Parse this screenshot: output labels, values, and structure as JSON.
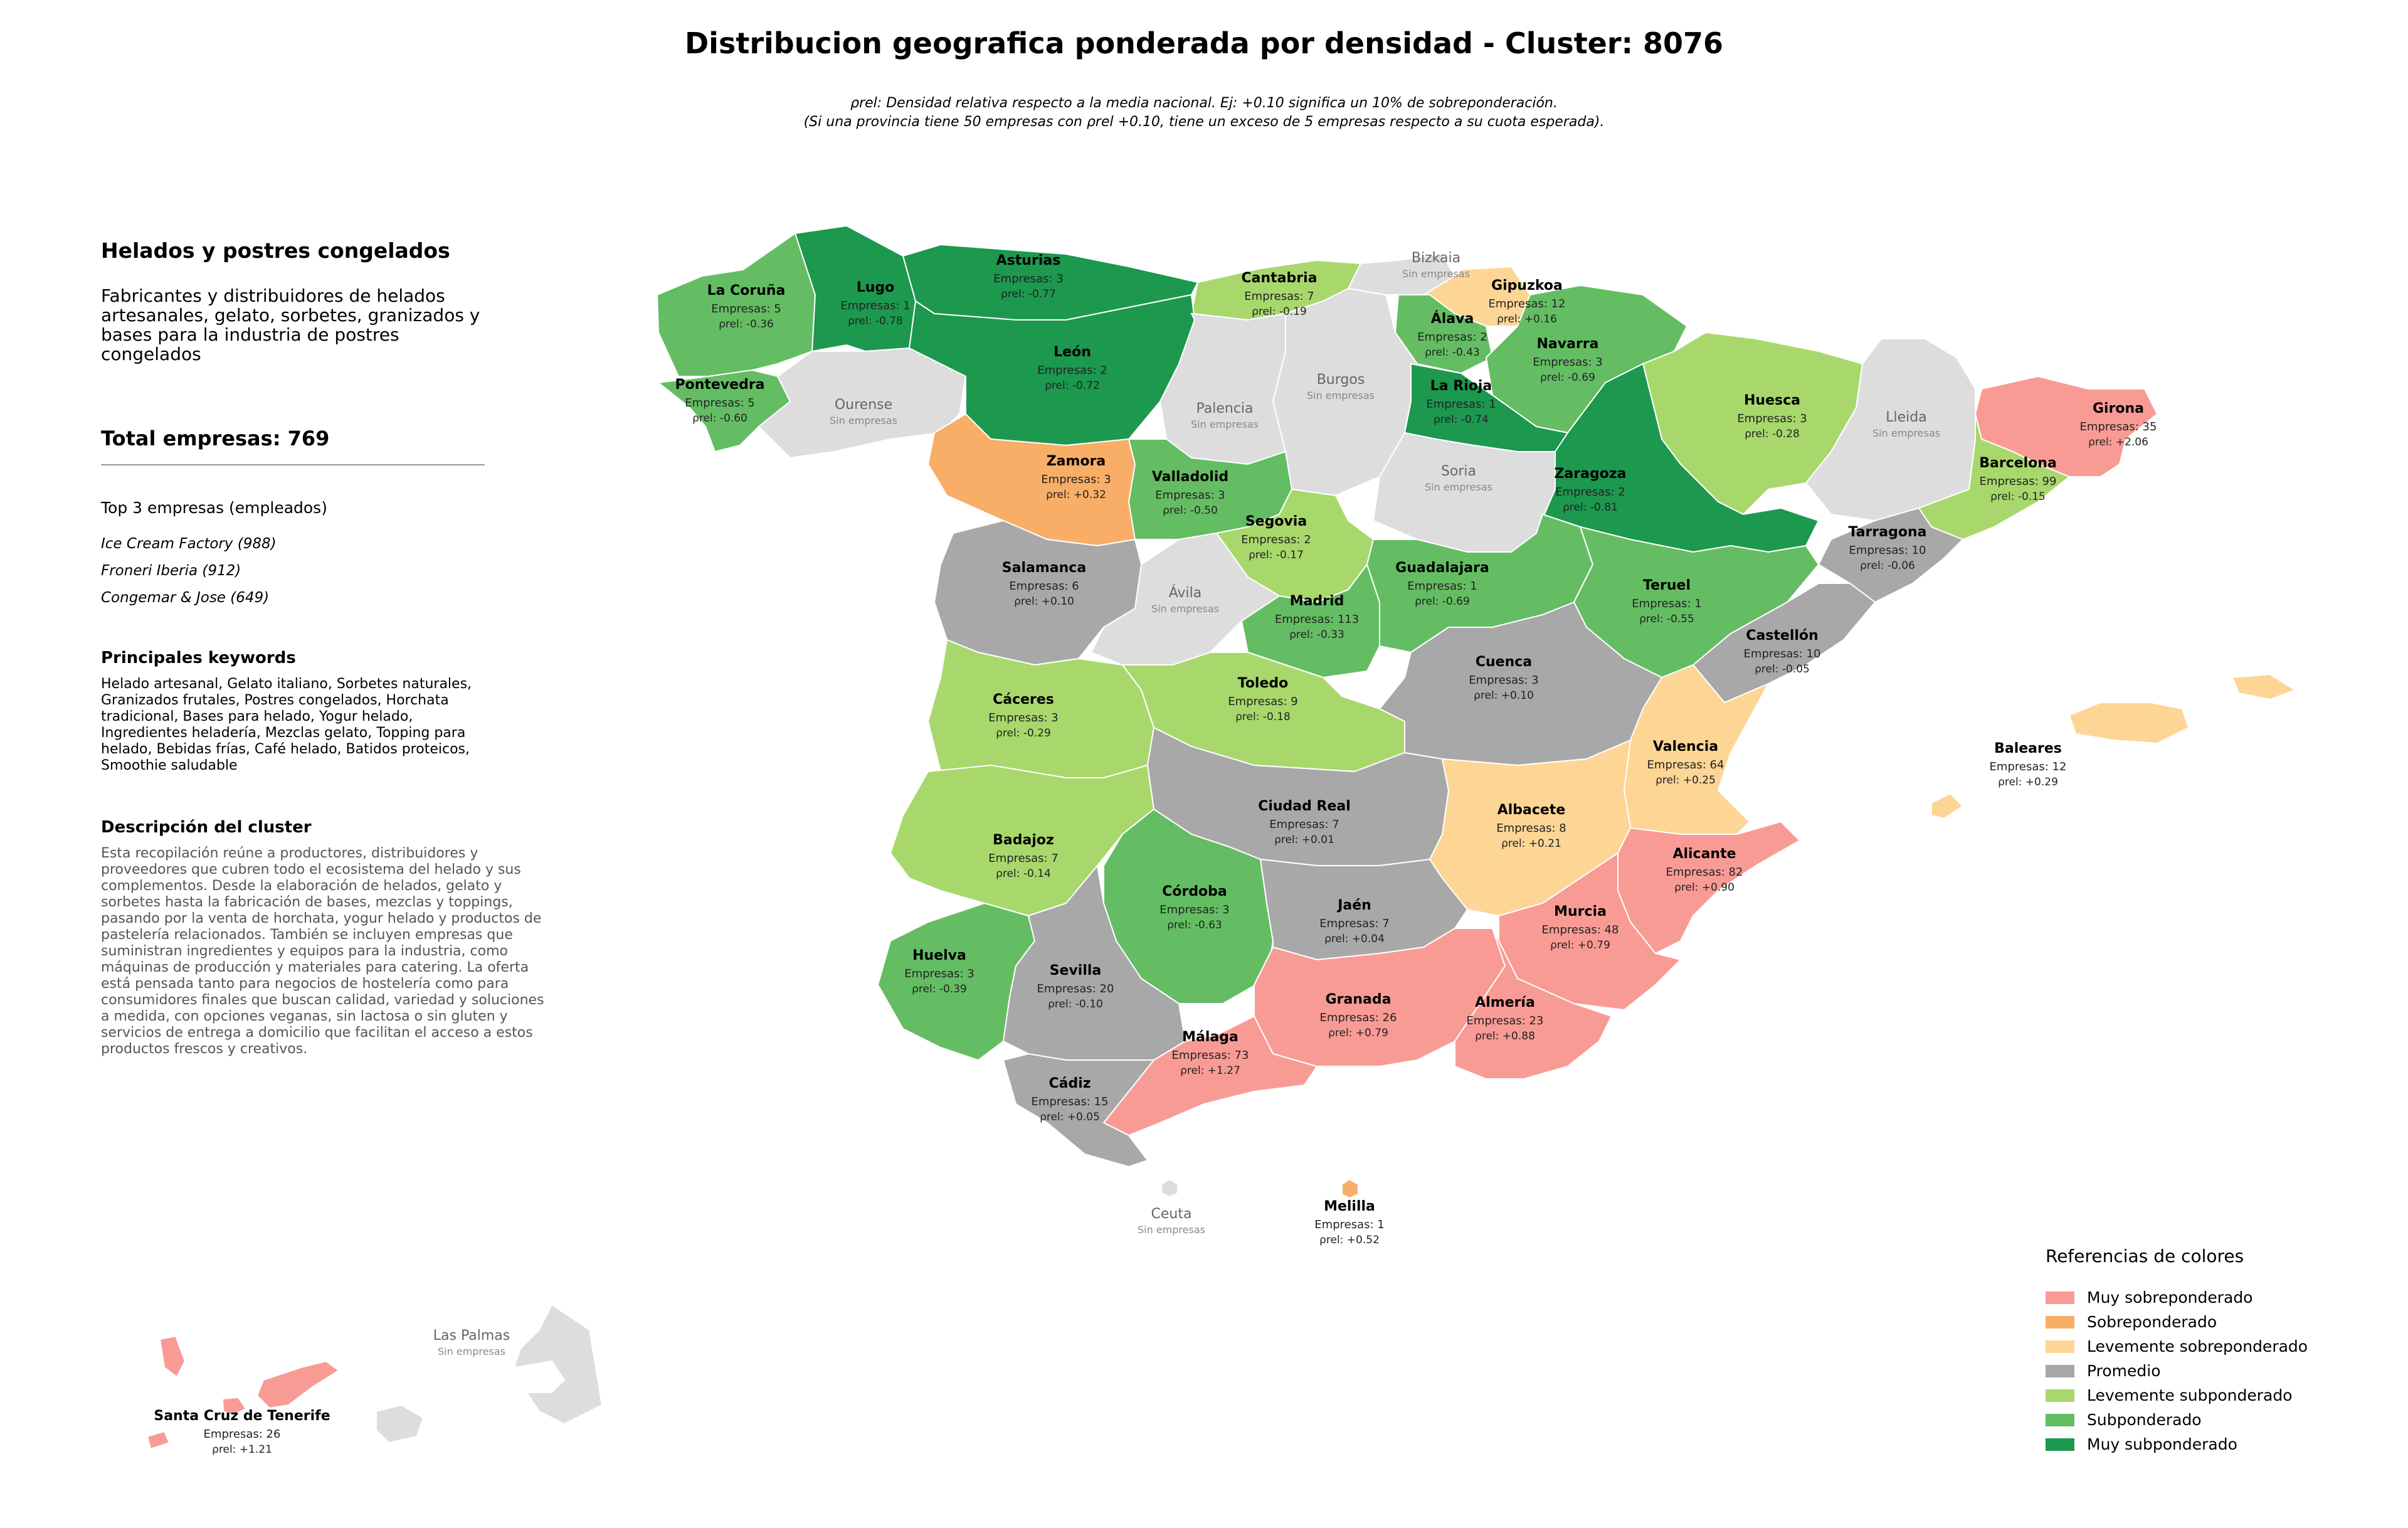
{
  "title": "Distribucion geografica ponderada por densidad - Cluster: 8076",
  "subtitle_line1": "ρrel: Densidad relativa respecto a la media nacional. Ej: +0.10 significa un 10% de sobreponderación.",
  "subtitle_line2": "(Si una provincia tiene 50 empresas con ρrel +0.10, tiene un exceso de 5 empresas respecto a su cuota esperada).",
  "sidebar": {
    "sector_title": "Helados y postres congelados",
    "sector_desc": "Fabricantes y distribuidores de helados artesanales, gelato, sorbetes, granizados y bases para la industria de postres congelados",
    "total": "Total empresas: 769",
    "top3_title": "Top 3 empresas (empleados)",
    "top3": [
      "Ice Cream Factory (988)",
      "Froneri Iberia (912)",
      "Congemar & Jose (649)"
    ],
    "keywords_title": "Principales keywords",
    "keywords": "Helado artesanal, Gelato italiano, Sorbetes naturales, Granizados frutales, Postres congelados, Horchata tradicional, Bases para helado, Yogur helado, Ingredientes heladería, Mezclas gelato, Topping para helado, Bebidas frías, Café helado, Batidos proteicos, Smoothie saludable",
    "cluster_desc_title": "Descripción del cluster",
    "cluster_desc": "Esta recopilación reúne a productores, distribuidores y proveedores que cubren todo el ecosistema del helado y sus complementos. Desde la elaboración de helados, gelato y sorbetes hasta la fabricación de bases, mezclas y toppings, pasando por la venta de horchata, yogur helado y productos de pastelería relacionados. También se incluyen empresas que suministran ingredientes y equipos para la industria, como máquinas de producción y materiales para catering. La oferta está pensada tanto para negocios de hostelería como para consumidores finales que buscan calidad, variedad y soluciones a medida, con opciones veganas, sin lactosa o sin gluten y servicios de entrega a domicilio que facilitan el acceso a estos productos frescos y creativos."
  },
  "colors": {
    "muy_sobre": "#f99b95",
    "sobre": "#f8ae66",
    "lev_sobre": "#fdd595",
    "promedio": "#a8a8a8",
    "lev_sub": "#a8d86c",
    "sub": "#64bd63",
    "muy_sub": "#1c984f",
    "sin_datos": "#dddddd"
  },
  "labels": {
    "empresas": "Empresas:",
    "rho": "ρrel:",
    "sin_empresas": "Sin empresas"
  },
  "legend": {
    "title": "Referencias de colores",
    "items": [
      {
        "label": "Muy sobreponderado",
        "color": "#f99b95"
      },
      {
        "label": "Sobreponderado",
        "color": "#f8ae66"
      },
      {
        "label": "Levemente sobreponderado",
        "color": "#fdd595"
      },
      {
        "label": "Promedio",
        "color": "#a8a8a8"
      },
      {
        "label": "Levemente subponderado",
        "color": "#a8d86c"
      },
      {
        "label": "Subponderado",
        "color": "#64bd63"
      },
      {
        "label": "Muy subponderado",
        "color": "#1c984f"
      }
    ]
  },
  "provinces": [
    {
      "name": "La Coruña",
      "empresas": 5,
      "rho": "-0.36",
      "cat": "sub"
    },
    {
      "name": "Lugo",
      "empresas": 1,
      "rho": "-0.78",
      "cat": "muy_sub"
    },
    {
      "name": "Asturias",
      "empresas": 3,
      "rho": "-0.77",
      "cat": "muy_sub"
    },
    {
      "name": "Cantabria",
      "empresas": 7,
      "rho": "-0.19",
      "cat": "lev_sub"
    },
    {
      "name": "Bizkaia",
      "empresas": null,
      "rho": null,
      "cat": "sin_datos"
    },
    {
      "name": "Gipuzkoa",
      "empresas": 12,
      "rho": "+0.16",
      "cat": "lev_sobre"
    },
    {
      "name": "Álava",
      "empresas": 2,
      "rho": "-0.43",
      "cat": "sub"
    },
    {
      "name": "Navarra",
      "empresas": 3,
      "rho": "-0.69",
      "cat": "sub"
    },
    {
      "name": "Pontevedra",
      "empresas": 5,
      "rho": "-0.60",
      "cat": "sub"
    },
    {
      "name": "Ourense",
      "empresas": null,
      "rho": null,
      "cat": "sin_datos"
    },
    {
      "name": "León",
      "empresas": 2,
      "rho": "-0.72",
      "cat": "muy_sub"
    },
    {
      "name": "Palencia",
      "empresas": null,
      "rho": null,
      "cat": "sin_datos"
    },
    {
      "name": "Burgos",
      "empresas": null,
      "rho": null,
      "cat": "sin_datos"
    },
    {
      "name": "La Rioja",
      "empresas": 1,
      "rho": "-0.74",
      "cat": "muy_sub"
    },
    {
      "name": "Huesca",
      "empresas": 3,
      "rho": "-0.28",
      "cat": "lev_sub"
    },
    {
      "name": "Lleida",
      "empresas": null,
      "rho": null,
      "cat": "sin_datos"
    },
    {
      "name": "Girona",
      "empresas": 35,
      "rho": "+2.06",
      "cat": "muy_sobre"
    },
    {
      "name": "Barcelona",
      "empresas": 99,
      "rho": "-0.15",
      "cat": "lev_sub"
    },
    {
      "name": "Zamora",
      "empresas": 3,
      "rho": "+0.32",
      "cat": "sobre"
    },
    {
      "name": "Valladolid",
      "empresas": 3,
      "rho": "-0.50",
      "cat": "sub"
    },
    {
      "name": "Soria",
      "empresas": null,
      "rho": null,
      "cat": "sin_datos"
    },
    {
      "name": "Zaragoza",
      "empresas": 2,
      "rho": "-0.81",
      "cat": "muy_sub"
    },
    {
      "name": "Tarragona",
      "empresas": 10,
      "rho": "-0.06",
      "cat": "promedio"
    },
    {
      "name": "Salamanca",
      "empresas": 6,
      "rho": "+0.10",
      "cat": "promedio"
    },
    {
      "name": "Segovia",
      "empresas": 2,
      "rho": "-0.17",
      "cat": "lev_sub"
    },
    {
      "name": "Ávila",
      "empresas": null,
      "rho": null,
      "cat": "sin_datos"
    },
    {
      "name": "Madrid",
      "empresas": 113,
      "rho": "-0.33",
      "cat": "sub"
    },
    {
      "name": "Guadalajara",
      "empresas": 1,
      "rho": "-0.69",
      "cat": "sub"
    },
    {
      "name": "Teruel",
      "empresas": 1,
      "rho": "-0.55",
      "cat": "sub"
    },
    {
      "name": "Castellón",
      "empresas": 10,
      "rho": "-0.05",
      "cat": "promedio"
    },
    {
      "name": "Cáceres",
      "empresas": 3,
      "rho": "-0.29",
      "cat": "lev_sub"
    },
    {
      "name": "Toledo",
      "empresas": 9,
      "rho": "-0.18",
      "cat": "lev_sub"
    },
    {
      "name": "Cuenca",
      "empresas": 3,
      "rho": "+0.10",
      "cat": "promedio"
    },
    {
      "name": "Valencia",
      "empresas": 64,
      "rho": "+0.25",
      "cat": "lev_sobre"
    },
    {
      "name": "Baleares",
      "empresas": 12,
      "rho": "+0.29",
      "cat": "lev_sobre"
    },
    {
      "name": "Badajoz",
      "empresas": 7,
      "rho": "-0.14",
      "cat": "lev_sub"
    },
    {
      "name": "Ciudad Real",
      "empresas": 7,
      "rho": "+0.01",
      "cat": "promedio"
    },
    {
      "name": "Albacete",
      "empresas": 8,
      "rho": "+0.21",
      "cat": "lev_sobre"
    },
    {
      "name": "Alicante",
      "empresas": 82,
      "rho": "+0.90",
      "cat": "muy_sobre"
    },
    {
      "name": "Córdoba",
      "empresas": 3,
      "rho": "-0.63",
      "cat": "sub"
    },
    {
      "name": "Jaén",
      "empresas": 7,
      "rho": "+0.04",
      "cat": "promedio"
    },
    {
      "name": "Murcia",
      "empresas": 48,
      "rho": "+0.79",
      "cat": "muy_sobre"
    },
    {
      "name": "Huelva",
      "empresas": 3,
      "rho": "-0.39",
      "cat": "sub"
    },
    {
      "name": "Sevilla",
      "empresas": 20,
      "rho": "-0.10",
      "cat": "promedio"
    },
    {
      "name": "Granada",
      "empresas": 26,
      "rho": "+0.79",
      "cat": "muy_sobre"
    },
    {
      "name": "Almería",
      "empresas": 23,
      "rho": "+0.88",
      "cat": "muy_sobre"
    },
    {
      "name": "Málaga",
      "empresas": 73,
      "rho": "+1.27",
      "cat": "muy_sobre"
    },
    {
      "name": "Cádiz",
      "empresas": 15,
      "rho": "+0.05",
      "cat": "promedio"
    },
    {
      "name": "Ceuta",
      "empresas": null,
      "rho": null,
      "cat": "sin_datos"
    },
    {
      "name": "Melilla",
      "empresas": 1,
      "rho": "+0.52",
      "cat": "sobre"
    },
    {
      "name": "Las Palmas",
      "empresas": null,
      "rho": null,
      "cat": "sin_datos"
    },
    {
      "name": "Santa Cruz de Tenerife",
      "empresas": 26,
      "rho": "+1.21",
      "cat": "muy_sobre"
    }
  ]
}
